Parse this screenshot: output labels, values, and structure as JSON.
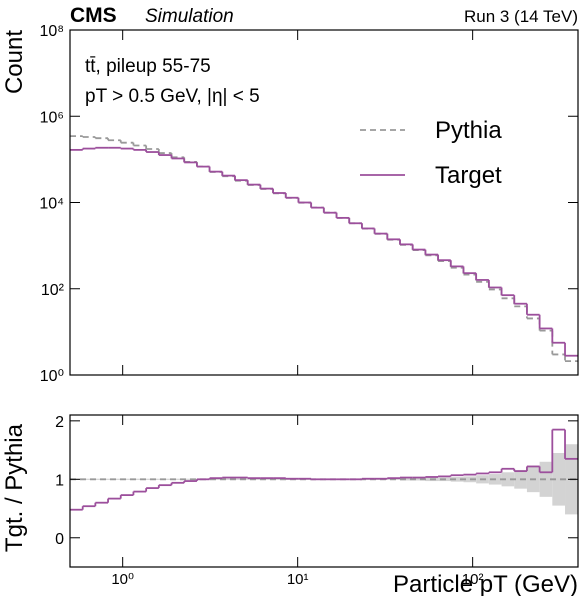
{
  "chart_data": [
    {
      "type": "histogram",
      "experiment": "CMS",
      "status": "Simulation",
      "energy_label": "Run 3 (14 TeV)",
      "annotations": [
        "tt̄, pileup 55-75",
        "pT > 0.5 GeV, |η| < 5"
      ],
      "y_label": "Count",
      "bins": [
        0.5,
        0.591,
        0.698,
        0.825,
        0.975,
        1.152,
        1.362,
        1.609,
        1.902,
        2.247,
        2.656,
        3.139,
        3.709,
        4.384,
        5.181,
        6.122,
        7.235,
        8.551,
        10.1,
        11.94,
        14.11,
        16.68,
        19.71,
        23.29,
        27.52,
        32.53,
        38.44,
        45.43,
        53.69,
        63.45,
        74.98,
        88.61,
        104.7,
        123.8,
        146.3,
        172.9,
        204.3,
        241.4,
        285.3,
        337.2,
        400
      ],
      "series": [
        {
          "name": "Pythia",
          "color": "#999999",
          "dashed": true,
          "values": [
            346000,
            330000,
            310000,
            278000,
            244000,
            210000,
            174000,
            140000,
            112000,
            87600,
            68000,
            51000,
            40800,
            32000,
            25500,
            20600,
            16300,
            12800,
            9900,
            7600,
            5800,
            4400,
            3300,
            2480,
            1880,
            1370,
            1040,
            786,
            596,
            438,
            308,
            213,
            145,
            96,
            60,
            39,
            20.5,
            10.7,
            3.0,
            2.1
          ]
        },
        {
          "name": "Target",
          "color": "#9c4f9c",
          "dashed": false,
          "values": [
            166000,
            178000,
            186000,
            186000,
            178000,
            166000,
            148000,
            126000,
            105000,
            85000,
            68000,
            52000,
            42000,
            33000,
            26000,
            21000,
            16600,
            12900,
            10000,
            7600,
            5800,
            4400,
            3300,
            2500,
            1900,
            1400,
            1070,
            810,
            620,
            460,
            330,
            230,
            160,
            107,
            71,
            45,
            25,
            12,
            5.6,
            2.8
          ]
        }
      ],
      "xlim": [
        0.5,
        400
      ],
      "ylim": [
        1,
        100000000
      ],
      "xscale": "log",
      "yscale": "log",
      "xticks": [
        1,
        10,
        100
      ],
      "yticks": [
        {
          "value": 1,
          "label": "10⁰"
        },
        {
          "value": 100,
          "label": "10²"
        },
        {
          "value": 10000,
          "label": "10⁴"
        },
        {
          "value": 1000000,
          "label": "10⁶"
        },
        {
          "value": 100000000,
          "label": "10⁸"
        }
      ],
      "legend": "upper right"
    },
    {
      "type": "ratio",
      "y_label": "Tgt. / Pythia",
      "x_label": "Particle pT (GeV)",
      "series": [
        {
          "color": "#9c4f9c",
          "values": [
            0.48,
            0.54,
            0.6,
            0.67,
            0.73,
            0.79,
            0.85,
            0.9,
            0.94,
            0.97,
            1.0,
            1.02,
            1.03,
            1.03,
            1.02,
            1.02,
            1.02,
            1.01,
            1.01,
            1.0,
            1.0,
            1.0,
            1.0,
            1.01,
            1.01,
            1.02,
            1.03,
            1.03,
            1.04,
            1.05,
            1.07,
            1.08,
            1.1,
            1.12,
            1.18,
            1.14,
            1.22,
            1.12,
            1.85,
            1.35
          ]
        }
      ],
      "reference_line": 1,
      "reference_color": "#999999",
      "band_errors": [
        0.01,
        0.01,
        0.01,
        0.01,
        0.01,
        0.01,
        0.01,
        0.01,
        0.01,
        0.01,
        0.01,
        0.01,
        0.01,
        0.01,
        0.01,
        0.01,
        0.01,
        0.01,
        0.01,
        0.01,
        0.01,
        0.01,
        0.01,
        0.01,
        0.01,
        0.01,
        0.02,
        0.02,
        0.03,
        0.03,
        0.04,
        0.05,
        0.07,
        0.09,
        0.12,
        0.16,
        0.22,
        0.3,
        0.45,
        0.6
      ],
      "band_color": "#d3d3d3",
      "xlim": [
        0.5,
        400
      ],
      "ylim": [
        -0.5,
        2.1
      ],
      "xscale": "log",
      "xticks": [
        {
          "value": 1,
          "label": "10⁰"
        },
        {
          "value": 10,
          "label": "10¹"
        },
        {
          "value": 100,
          "label": "10²"
        }
      ],
      "yticks": [
        0,
        1,
        2
      ]
    }
  ]
}
